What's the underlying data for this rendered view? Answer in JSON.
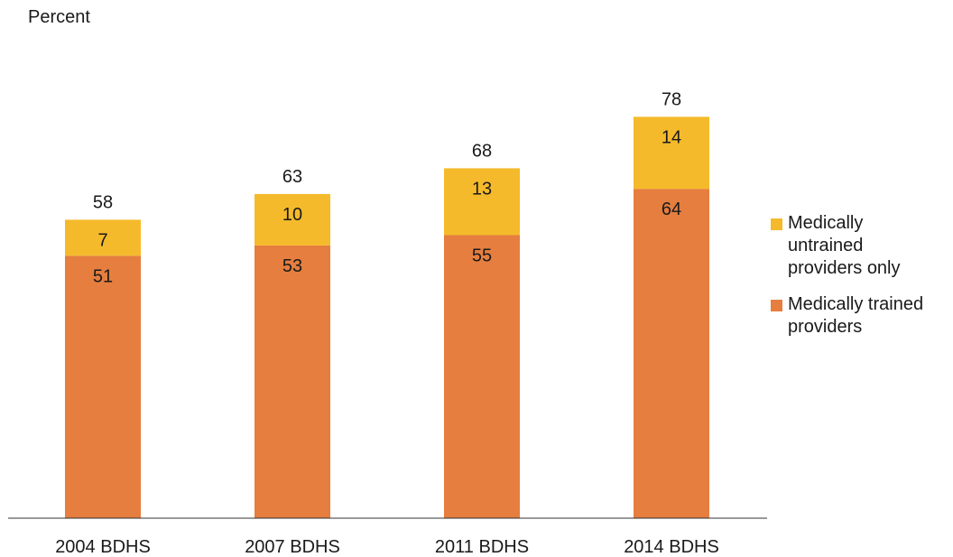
{
  "chart_data": {
    "type": "bar",
    "stacked": true,
    "title": "",
    "ylabel": "Percent",
    "xlabel": "",
    "ylim": [
      0,
      80
    ],
    "grid": false,
    "legend_position": "right",
    "categories": [
      "2004 BDHS",
      "2007 BDHS",
      "2011 BDHS",
      "2014 BDHS"
    ],
    "series": [
      {
        "name": "Medically trained providers",
        "color": "#E57E3F",
        "values": [
          51,
          53,
          55,
          64
        ]
      },
      {
        "name": "Medically untrained providers only",
        "color": "#F5BA2B",
        "values": [
          7,
          10,
          13,
          14
        ]
      }
    ],
    "totals": [
      58,
      63,
      68,
      78
    ],
    "legend": [
      {
        "series": 1,
        "lines": [
          "Medically",
          "untrained",
          "providers only"
        ]
      },
      {
        "series": 0,
        "lines": [
          "Medically trained",
          "providers"
        ]
      }
    ]
  }
}
